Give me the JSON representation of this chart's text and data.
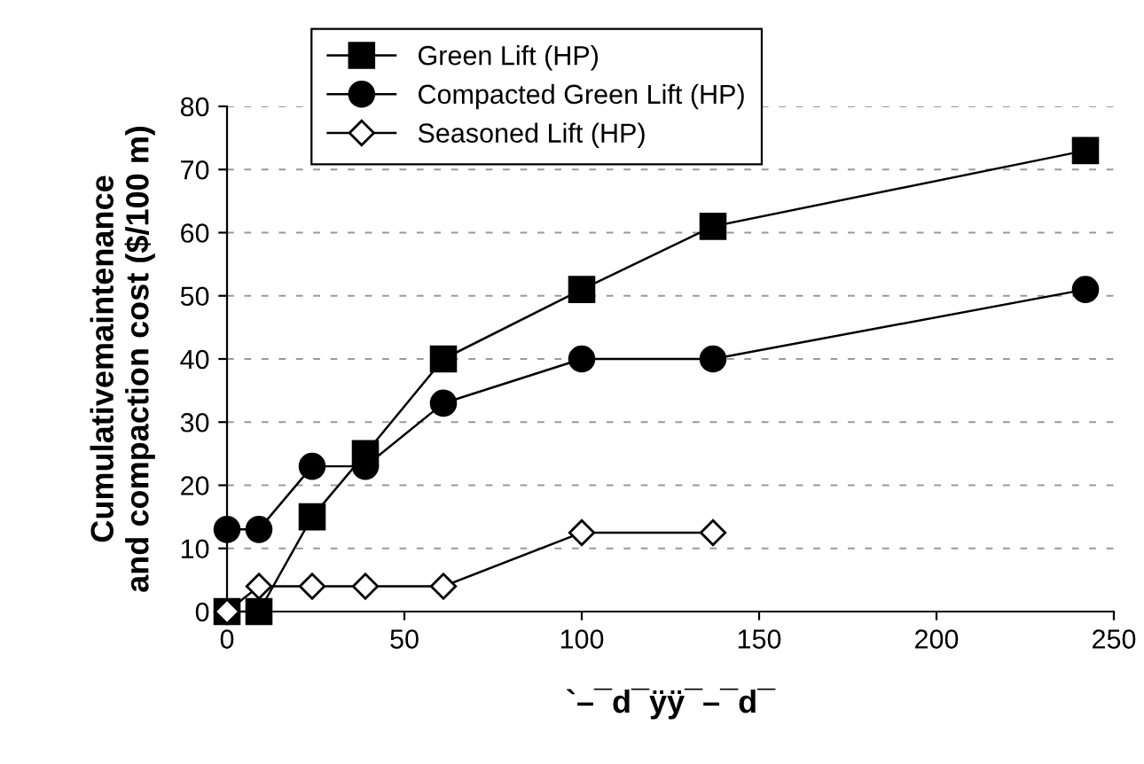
{
  "chart_data": {
    "type": "line",
    "xlabel": "`–¯d¯ÿÿ¯–¯d¯",
    "ylabel": "Cumulativemaintenance\nand compaction cost ($/100 m)",
    "series": [
      {
        "name": "Green Lift (HP)",
        "color": "#000000",
        "marker": "square",
        "x": [
          0,
          9,
          24,
          39,
          61,
          100,
          137,
          242
        ],
        "values": [
          0,
          0,
          15,
          25,
          40,
          51,
          61,
          73
        ]
      },
      {
        "name": "Compacted Green Lift (HP)",
        "color": "#000000",
        "marker": "circle",
        "x": [
          0,
          9,
          24,
          39,
          61,
          100,
          137,
          242
        ],
        "values": [
          13,
          13,
          23,
          23,
          33,
          40,
          40,
          51
        ]
      },
      {
        "name": "Seasoned Lift (HP)",
        "color": "#000000",
        "marker": "diamond",
        "x": [
          0,
          9,
          24,
          39,
          61,
          100,
          137
        ],
        "values": [
          0,
          4,
          4,
          4,
          4,
          12.5,
          12.5
        ]
      }
    ],
    "xlim": [
      0,
      250
    ],
    "xticks": [
      0,
      50,
      100,
      150,
      200,
      250
    ],
    "ylim": [
      0,
      80
    ],
    "yticks": [
      0,
      10,
      20,
      30,
      40,
      50,
      60,
      70,
      80
    ],
    "grid": "y",
    "legend": "top left",
    "line_style": "solid"
  }
}
